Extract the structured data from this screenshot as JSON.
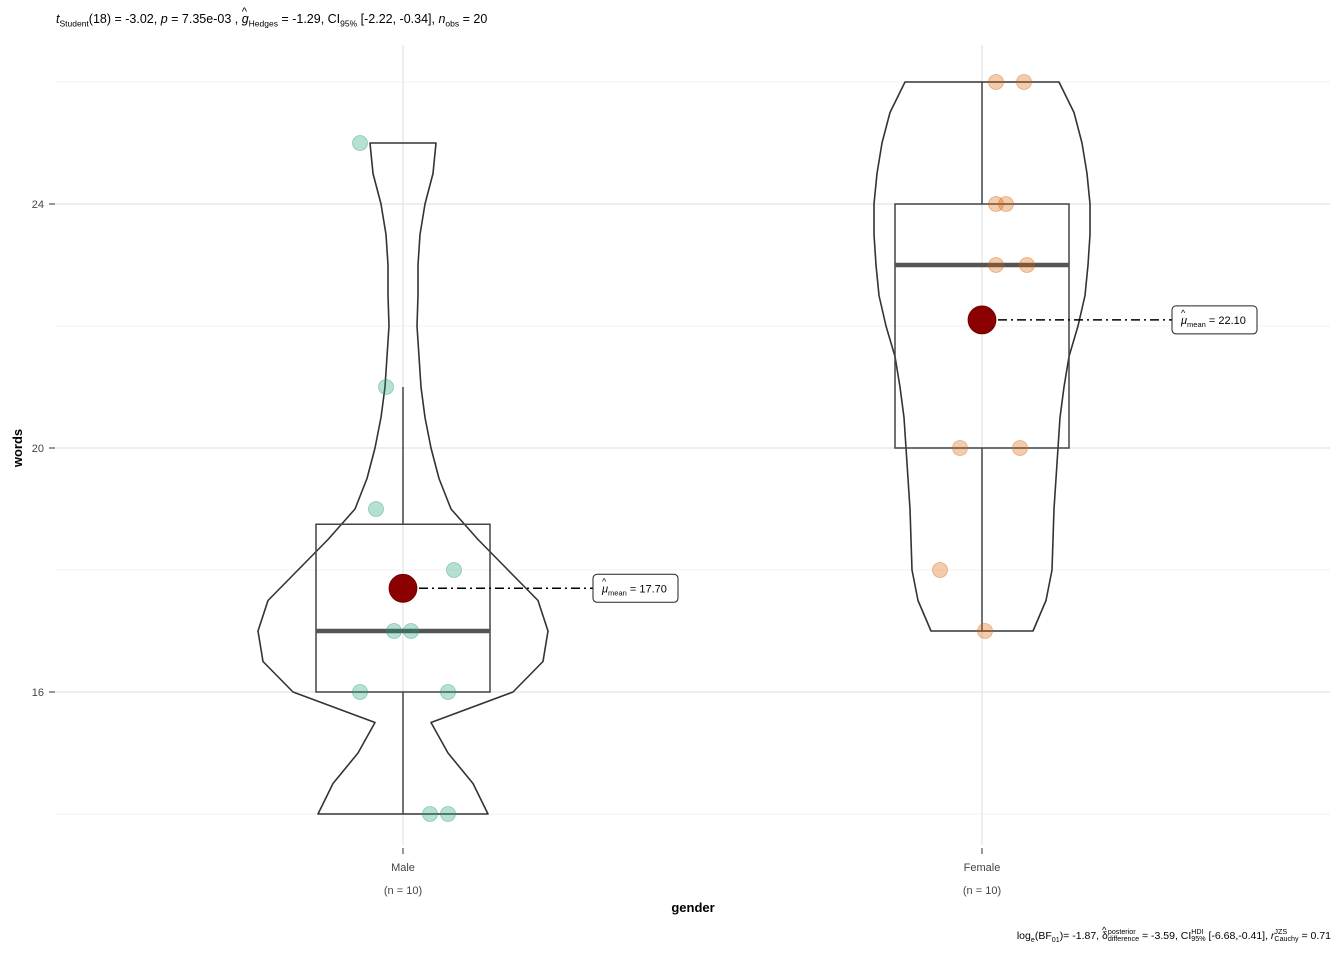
{
  "subtitle": {
    "t_label": "t",
    "t_sub": "Student",
    "t_df": "(18) = -3.02, ",
    "p_label": "p",
    "p_val": " = 7.35e-03 , ",
    "g_label": "g",
    "g_sub": "Hedges",
    "g_val": " = -1.29, CI",
    "ci_sub": "95%",
    "ci_val": " [-2.22, -0.34], ",
    "n_label": "n",
    "n_sub": "obs",
    "n_val": " = 20"
  },
  "caption": {
    "bf_label": "log",
    "bf_sub": "e",
    "bf_mid": "(BF",
    "bf_sub2": "01",
    "bf_val": ")= -1.87, ",
    "delta_label": "δ",
    "delta_sup": "posterior",
    "delta_sub": "difference",
    "delta_val": " = -3.59, CI",
    "ci_sup": "HDI",
    "ci_sub": "95%",
    "ci_val": " [-6.68,-0.41], ",
    "r_label": "r",
    "r_sup": "JZS",
    "r_sub": "Cauchy",
    "r_val": " = 0.71"
  },
  "chart_data": {
    "type": "violin-box-scatter",
    "title": "",
    "xlabel": "gender",
    "ylabel": "words",
    "ylim": [
      13.7,
      26.6
    ],
    "yticks": [
      16,
      20,
      24
    ],
    "grid": true,
    "categories": [
      {
        "name": "Male",
        "n_label": "(n = 10)",
        "color": "#1b9e77",
        "values": [
          25,
          21,
          19,
          18,
          17,
          17,
          16,
          16,
          14,
          14
        ],
        "box": {
          "q1": 16,
          "median": 17,
          "q3": 18.75,
          "whisker_low": 14,
          "whisker_high": 21
        },
        "mean": 17.7,
        "mean_label": "= 17.70"
      },
      {
        "name": "Female",
        "n_label": "(n = 10)",
        "color": "#d95f02",
        "values": [
          26,
          26,
          24,
          24,
          23,
          23,
          20,
          20,
          18,
          17
        ],
        "box": {
          "q1": 20,
          "median": 23,
          "q3": 24,
          "whisker_low": 17,
          "whisker_high": 26
        },
        "mean": 22.1,
        "mean_label": "= 22.10"
      }
    ],
    "mean_symbol": "μ",
    "mean_sub": "mean",
    "mean_color": "#8b0000"
  }
}
